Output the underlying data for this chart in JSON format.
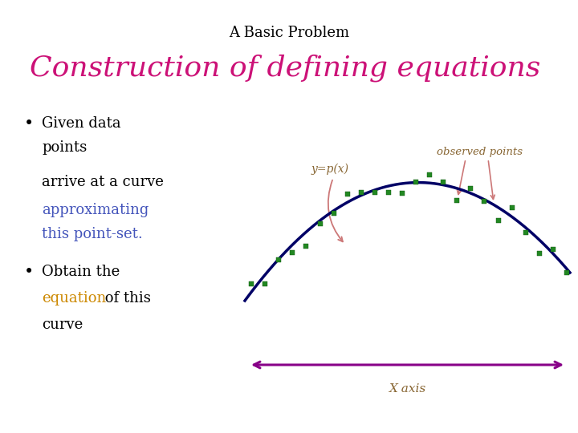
{
  "title_small": "A Basic Problem",
  "title_large": "Construction of defining equations",
  "label_yp": "y=p(x)",
  "label_observed": "observed points",
  "label_xaxis": "X axis",
  "color_title_large": "#CC1177",
  "color_blue": "#4455BB",
  "color_orange": "#CC8800",
  "color_brown": "#886633",
  "color_curve": "#000066",
  "color_points": "#228822",
  "color_arrow_x": "#880088",
  "color_arrow_label": "#CC7777",
  "bg_color": "#FFFFFF",
  "title_small_fontsize": 13,
  "title_large_fontsize": 26,
  "bullet_fontsize": 13,
  "label_fontsize": 10,
  "xaxis_label_fontsize": 11,
  "curve_linewidth": 2.5,
  "point_size": 14
}
